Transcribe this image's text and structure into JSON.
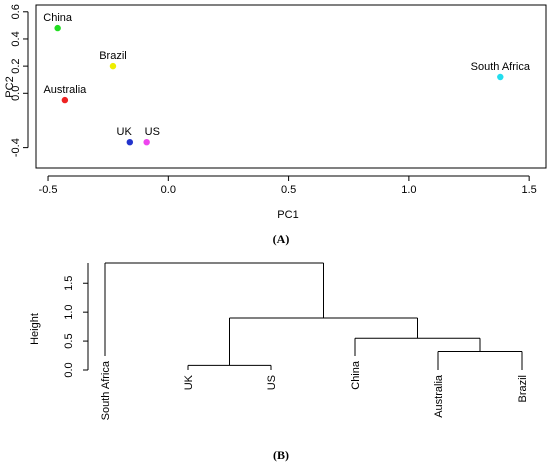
{
  "chart_data": [
    {
      "type": "scatter",
      "panel_caption": "(A)",
      "xlabel": "PC1",
      "ylabel": "PC2",
      "xlim": [
        -0.55,
        1.57
      ],
      "ylim": [
        -0.55,
        0.65
      ],
      "xticks": [
        -0.5,
        0.0,
        0.5,
        1.0,
        1.5
      ],
      "xtick_labels": [
        "-0.5",
        "0.0",
        "0.5",
        "1.0",
        "1.5"
      ],
      "yticks": [
        -0.4,
        0.0,
        0.2,
        0.4,
        0.6
      ],
      "ytick_labels": [
        "-0.4",
        "0.0",
        "0.2",
        "0.4",
        "0.6"
      ],
      "points": [
        {
          "label": "China",
          "x": -0.46,
          "y": 0.48,
          "color": "#22dd22"
        },
        {
          "label": "Brazil",
          "x": -0.23,
          "y": 0.2,
          "color": "#eeee00"
        },
        {
          "label": "Australia",
          "x": -0.43,
          "y": -0.05,
          "color": "#ee2222"
        },
        {
          "label": "UK",
          "x": -0.16,
          "y": -0.36,
          "color": "#2233cc"
        },
        {
          "label": "US",
          "x": -0.09,
          "y": -0.36,
          "color": "#ee44ee"
        },
        {
          "label": "South Africa",
          "x": 1.38,
          "y": 0.12,
          "color": "#22ddee"
        }
      ]
    },
    {
      "type": "dendrogram",
      "panel_caption": "(B)",
      "ylabel": "Height",
      "ylim": [
        0,
        1.85
      ],
      "yticks": [
        0.0,
        0.5,
        1.0,
        1.5
      ],
      "ytick_labels": [
        "0.0",
        "0.5",
        "1.0",
        "1.5"
      ],
      "leaves": [
        "South Africa",
        "UK",
        "US",
        "China",
        "Australia",
        "Brazil"
      ],
      "merges": [
        {
          "left": "UK",
          "right": "US",
          "height": 0.08
        },
        {
          "left": "Australia",
          "right": "Brazil",
          "height": 0.32
        },
        {
          "left": "China",
          "right": "Australia+Brazil",
          "height": 0.55
        },
        {
          "left": "UK+US",
          "right": "China+Australia+Brazil",
          "height": 0.9
        },
        {
          "left": "South Africa",
          "right": "all others",
          "height": 1.85
        }
      ]
    }
  ]
}
